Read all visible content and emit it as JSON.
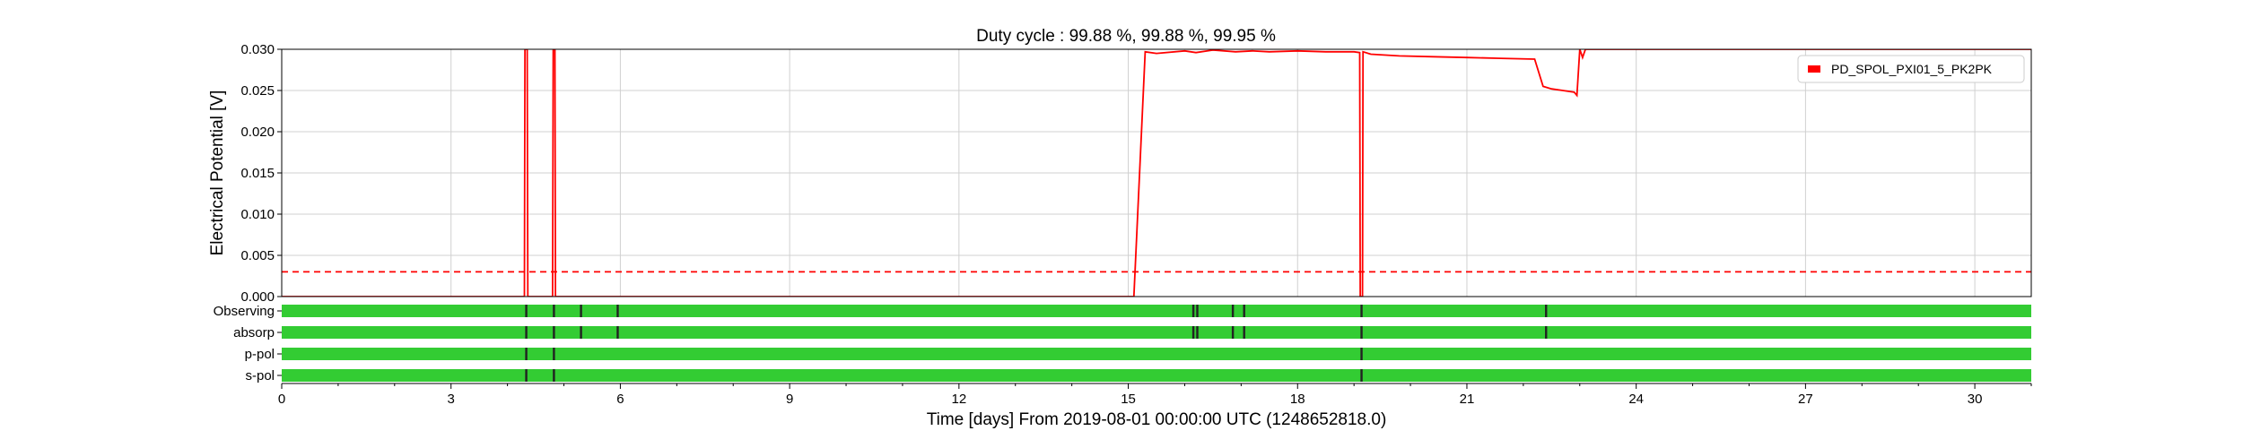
{
  "chart_data": {
    "type": "line",
    "title": "Duty cycle : 99.88 %, 99.88 %, 99.95 %",
    "xlabel": "Time [days] From 2019-08-01 00:00:00 UTC (1248652818.0)",
    "ylabel": "Electrical Potential [V]",
    "xlim": [
      0,
      31
    ],
    "ylim": [
      0,
      0.03
    ],
    "xticks": [
      "0",
      "3",
      "6",
      "9",
      "12",
      "15",
      "18",
      "21",
      "24",
      "27",
      "30"
    ],
    "yticks": [
      "0.000",
      "0.005",
      "0.010",
      "0.015",
      "0.020",
      "0.025",
      "0.030"
    ],
    "grid": true,
    "legend_position": "top-right",
    "colors": {
      "series": "#ff0000",
      "threshold": "#ff0000",
      "segment_on": "#33cc33",
      "segment_off": "#222222"
    },
    "series": [
      {
        "name": "PD_SPOL_PXI01_5_PK2PK",
        "x": [
          0,
          4.3,
          4.31,
          4.35,
          4.36,
          4.8,
          4.81,
          4.84,
          4.85,
          15.1,
          15.3,
          15.5,
          16.0,
          16.2,
          16.5,
          16.9,
          17.2,
          17.5,
          18.0,
          18.5,
          19.0,
          19.1,
          19.11,
          19.15,
          19.16,
          19.3,
          19.8,
          20.4,
          21.0,
          21.6,
          22.2,
          22.35,
          22.5,
          22.7,
          22.9,
          22.95,
          23.0,
          23.05,
          23.1,
          23.2,
          31
        ],
        "y": [
          0,
          0,
          0.03,
          0.03,
          0,
          0,
          0.03,
          0.03,
          0,
          0,
          0.0297,
          0.0295,
          0.0298,
          0.0296,
          0.0299,
          0.0297,
          0.0298,
          0.0297,
          0.0298,
          0.0297,
          0.0297,
          0.0296,
          0.0,
          0.0,
          0.0297,
          0.0294,
          0.0292,
          0.0291,
          0.029,
          0.0289,
          0.0288,
          0.0255,
          0.0252,
          0.025,
          0.0248,
          0.0244,
          0.03,
          0.029,
          0.03,
          0.03,
          0.03
        ]
      }
    ],
    "threshold": {
      "y": 0.003,
      "style": "dashed"
    },
    "segments": [
      {
        "label": "Observing",
        "gaps": [
          4.33,
          4.82,
          5.3,
          5.95,
          16.15,
          16.22,
          16.85,
          17.05,
          19.13,
          22.4
        ]
      },
      {
        "label": "absorp",
        "gaps": [
          4.33,
          4.82,
          5.3,
          5.95,
          16.15,
          16.22,
          16.85,
          17.05,
          19.13,
          22.4
        ]
      },
      {
        "label": "p-pol",
        "gaps": [
          4.33,
          4.82,
          19.13
        ]
      },
      {
        "label": "s-pol",
        "gaps": [
          4.33,
          4.82,
          19.13
        ]
      }
    ]
  }
}
